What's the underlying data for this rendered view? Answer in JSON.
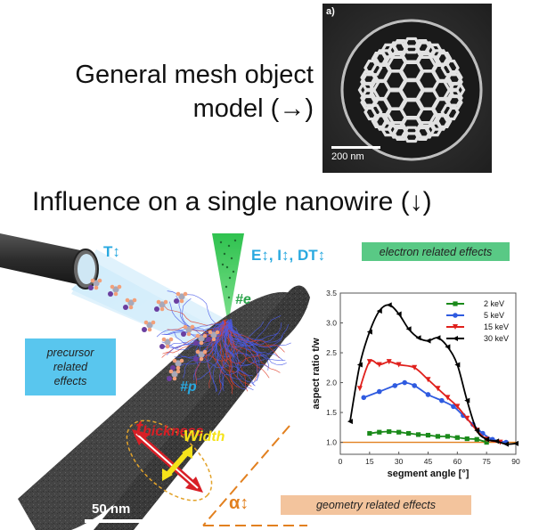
{
  "header": {
    "line1": "General mesh object",
    "line2": "model (→)",
    "line3": "Influence on a single nanowire (↓)"
  },
  "sem_image": {
    "panel_label": "a)",
    "scale_label": "200 nm"
  },
  "figure": {
    "temperature_label": "T↕",
    "beam_label": "E↕, I↕, DT↕",
    "electron_marker": "#e",
    "precursor_marker": "#p",
    "electron_box": "electron related effects",
    "precursor_box": [
      "precursor",
      "related",
      "effects"
    ],
    "geometry_box": "geometry related effects",
    "thickness_first": "t",
    "thickness_rest": "hickness",
    "width_first": "w",
    "width_rest": "idth",
    "alpha_label": "α↕",
    "scalebar_label": "50 nm"
  },
  "colors": {
    "cyan": "#29a9e0",
    "electron_green": "#59c985",
    "precursor_blue": "#59c6ee",
    "geometry_orange": "#f3c49d",
    "thickness_red": "#d81f26",
    "width_yellow": "#f5e31a"
  },
  "chart_data": {
    "type": "line",
    "xlabel": "segment angle [°]",
    "ylabel": "aspect ratio t/w",
    "xlim": [
      0,
      90
    ],
    "ylim": [
      0.8,
      3.5
    ],
    "x_ticks": [
      "0",
      "15",
      "30",
      "45",
      "60",
      "75",
      "90"
    ],
    "y_ticks": [
      "1.0",
      "1.5",
      "2.0",
      "2.5",
      "3.0",
      "3.5"
    ],
    "legend_position": "top-right",
    "reference_line": 1.0,
    "series": [
      {
        "name": "2 keV",
        "color": "#1a8a1a",
        "marker": "square",
        "points": [
          [
            15,
            1.15
          ],
          [
            20,
            1.17
          ],
          [
            25,
            1.18
          ],
          [
            30,
            1.17
          ],
          [
            35,
            1.15
          ],
          [
            40,
            1.13
          ],
          [
            45,
            1.12
          ],
          [
            50,
            1.1
          ],
          [
            55,
            1.1
          ],
          [
            60,
            1.08
          ],
          [
            65,
            1.06
          ],
          [
            70,
            1.05
          ],
          [
            75,
            1.0
          ]
        ]
      },
      {
        "name": "5 keV",
        "color": "#2f5be0",
        "marker": "circle",
        "points": [
          [
            12,
            1.75
          ],
          [
            20,
            1.85
          ],
          [
            28,
            1.95
          ],
          [
            33,
            2.0
          ],
          [
            38,
            1.95
          ],
          [
            45,
            1.8
          ],
          [
            52,
            1.7
          ],
          [
            58,
            1.6
          ],
          [
            63,
            1.45
          ],
          [
            68,
            1.3
          ],
          [
            73,
            1.15
          ],
          [
            78,
            1.05
          ],
          [
            85,
            1.0
          ]
        ]
      },
      {
        "name": "15 keV",
        "color": "#e0201c",
        "marker": "triangle-down",
        "points": [
          [
            10,
            1.9
          ],
          [
            15,
            2.35
          ],
          [
            20,
            2.3
          ],
          [
            25,
            2.35
          ],
          [
            30,
            2.3
          ],
          [
            38,
            2.25
          ],
          [
            45,
            2.05
          ],
          [
            50,
            1.9
          ],
          [
            55,
            1.75
          ],
          [
            60,
            1.6
          ],
          [
            65,
            1.4
          ],
          [
            70,
            1.2
          ],
          [
            75,
            1.05
          ],
          [
            82,
            1.0
          ]
        ]
      },
      {
        "name": "30 keV",
        "color": "#000000",
        "marker": "triangle-left",
        "points": [
          [
            5,
            1.35
          ],
          [
            10,
            2.3
          ],
          [
            15,
            2.85
          ],
          [
            20,
            3.2
          ],
          [
            25,
            3.3
          ],
          [
            30,
            3.15
          ],
          [
            35,
            2.9
          ],
          [
            40,
            2.75
          ],
          [
            45,
            2.7
          ],
          [
            50,
            2.75
          ],
          [
            55,
            2.6
          ],
          [
            60,
            2.3
          ],
          [
            65,
            1.7
          ],
          [
            70,
            1.2
          ],
          [
            75,
            1.05
          ],
          [
            80,
            1.02
          ],
          [
            85,
            0.97
          ],
          [
            90,
            0.98
          ]
        ]
      }
    ]
  }
}
